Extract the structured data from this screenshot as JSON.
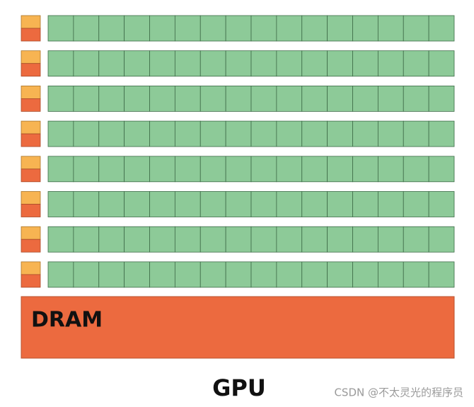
{
  "dram": {
    "label": "DRAM"
  },
  "gpu": {
    "label": "GPU"
  },
  "watermark": "CSDN @不太灵光的程序员"
}
